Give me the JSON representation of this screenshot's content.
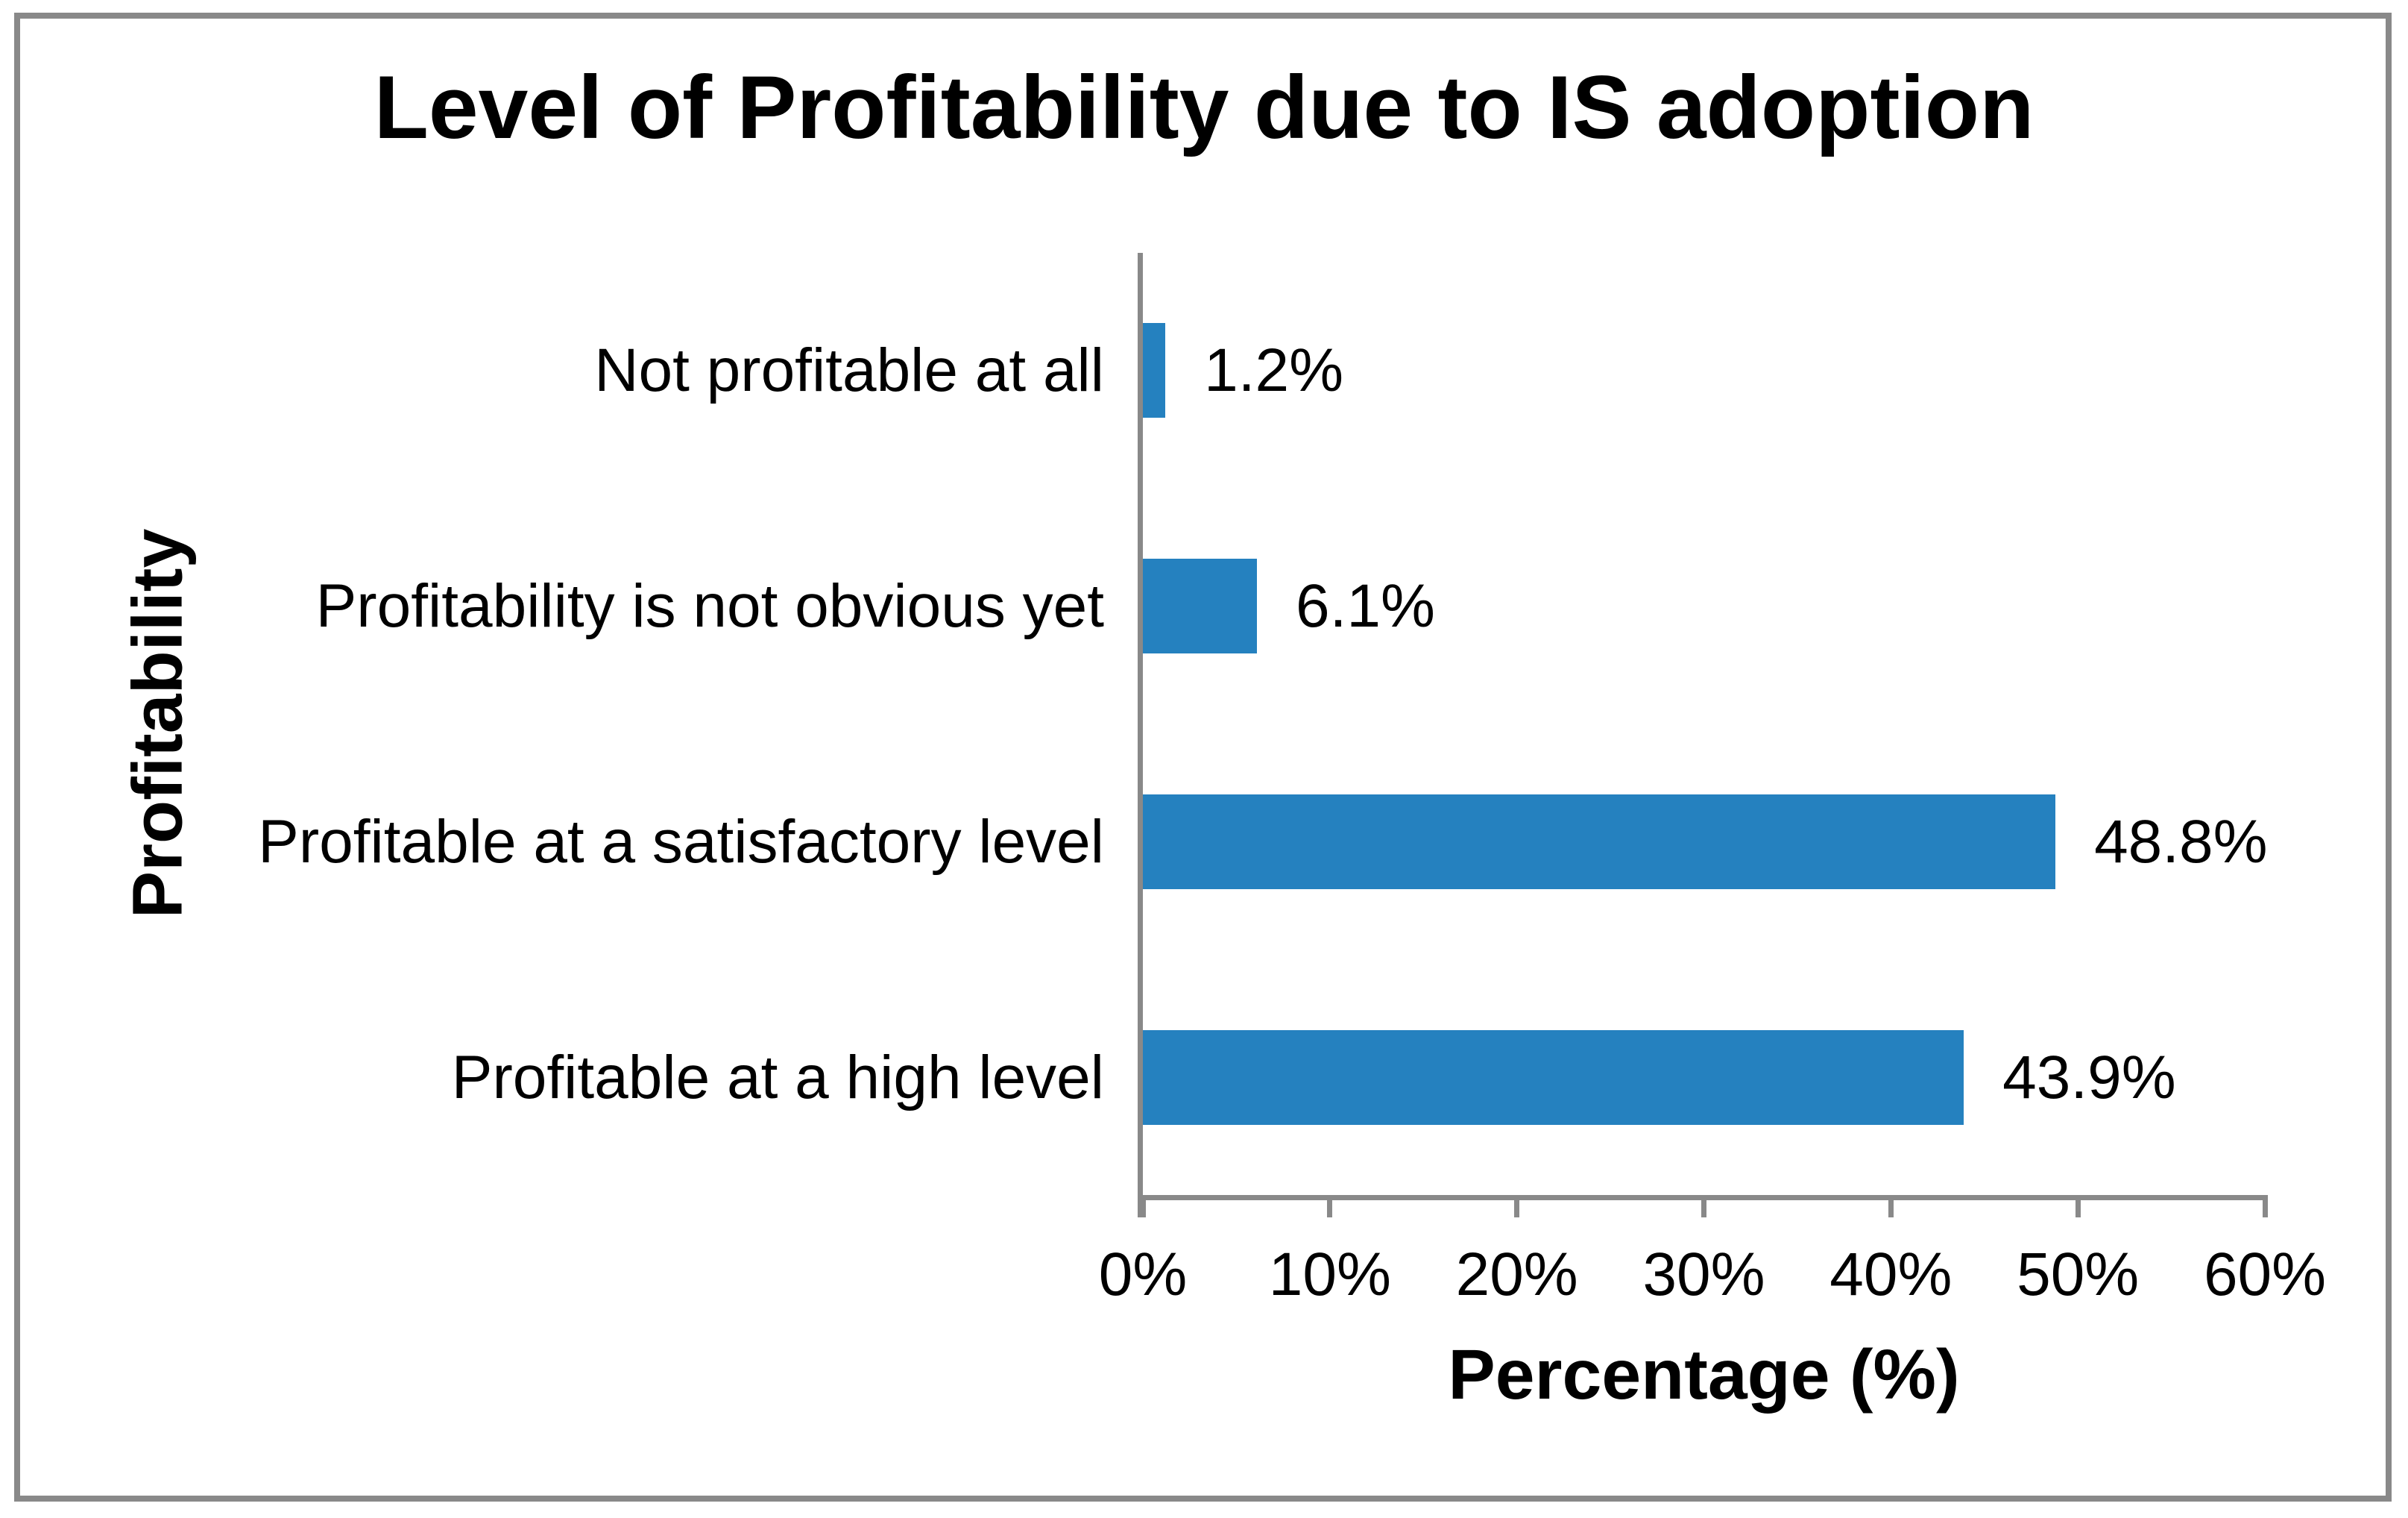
{
  "chart_data": {
    "type": "bar",
    "orientation": "horizontal",
    "title": "Level of Profitability due to IS adoption",
    "xlabel": "Percentage (%)",
    "ylabel": "Profitability",
    "categories": [
      "Not profitable at all",
      "Profitability is not obvious yet",
      "Profitable at a satisfactory level",
      "Profitable at a high level"
    ],
    "values": [
      1.2,
      6.1,
      48.8,
      43.9
    ],
    "data_labels": [
      "1.2%",
      "6.1%",
      "48.8%",
      "43.9%"
    ],
    "xlim": [
      0,
      60
    ],
    "x_ticks": [
      0,
      10,
      20,
      30,
      40,
      50,
      60
    ],
    "x_tick_labels": [
      "0%",
      "10%",
      "20%",
      "30%",
      "40%",
      "50%",
      "60%"
    ],
    "grid": "off",
    "legend": "none",
    "bar_color": "#2581BF",
    "axis_color": "#898989",
    "text_color": "#000000",
    "background_color": "#FFFFFF"
  }
}
